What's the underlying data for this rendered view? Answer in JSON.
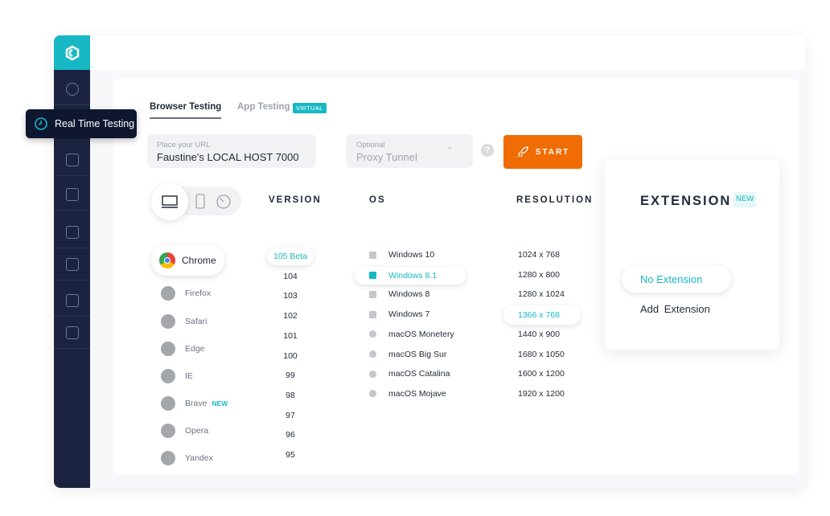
{
  "tooltip": {
    "label": "Real Time Testing"
  },
  "sidebar": {
    "icons": [
      "speedometer-icon",
      "clock-icon",
      "mobile-icon",
      "robot-icon",
      "lightning-icon",
      "visual-compare-icon",
      "plus-square-icon",
      "integrations-icon"
    ]
  },
  "tabs": {
    "browser": "Browser Testing",
    "app": "App Testing",
    "app_badge": "VIRTUAL"
  },
  "url": {
    "label": "Place your URL",
    "value": "Faustine's LOCAL HOST 7000"
  },
  "proxy": {
    "label": "Optional",
    "value": "Proxy Tunnel"
  },
  "help": "?",
  "start_label": "START",
  "headers": {
    "version": "VERSION",
    "os": "OS",
    "resolution": "RESOLUTION"
  },
  "browsers": [
    {
      "name": "Chrome",
      "selected": true
    },
    {
      "name": "Firefox"
    },
    {
      "name": "Safari"
    },
    {
      "name": "Edge"
    },
    {
      "name": "IE"
    },
    {
      "name": "Brave",
      "badge": "NEW"
    },
    {
      "name": "Opera"
    },
    {
      "name": "Yandex"
    }
  ],
  "versions": [
    "105 Beta",
    "104",
    "103",
    "102",
    "101",
    "100",
    "99",
    "98",
    "97",
    "96",
    "95"
  ],
  "selected_version": "105 Beta",
  "os": [
    {
      "name": "Windows 10",
      "icon": "windows-icon"
    },
    {
      "name": "Windows 8.1",
      "icon": "windows-icon",
      "selected": true
    },
    {
      "name": "Windows 8",
      "icon": "windows-icon"
    },
    {
      "name": "Windows 7",
      "icon": "windows-icon"
    },
    {
      "name": "macOS Monetery",
      "icon": "apple-icon"
    },
    {
      "name": "macOS Big Sur",
      "icon": "apple-icon"
    },
    {
      "name": "macOS Catalina",
      "icon": "apple-icon"
    },
    {
      "name": "macOS Mojave",
      "icon": "apple-icon"
    }
  ],
  "resolutions": [
    "1024 x 768",
    "1280 x 800",
    "1280 x 1024",
    "1366 x 768",
    "1440 x 900",
    "1680 x 1050",
    "1600 x 1200",
    "1920 x 1200"
  ],
  "selected_resolution": "1366 x 768",
  "extension": {
    "title": "EXTENSION",
    "badge": "NEW",
    "options": [
      "No Extension",
      "Add  Extension"
    ],
    "selected": "No Extension"
  },
  "colors": {
    "accent": "#17b8c4",
    "start": "#f06d05",
    "sidebar": "#1b2340"
  }
}
